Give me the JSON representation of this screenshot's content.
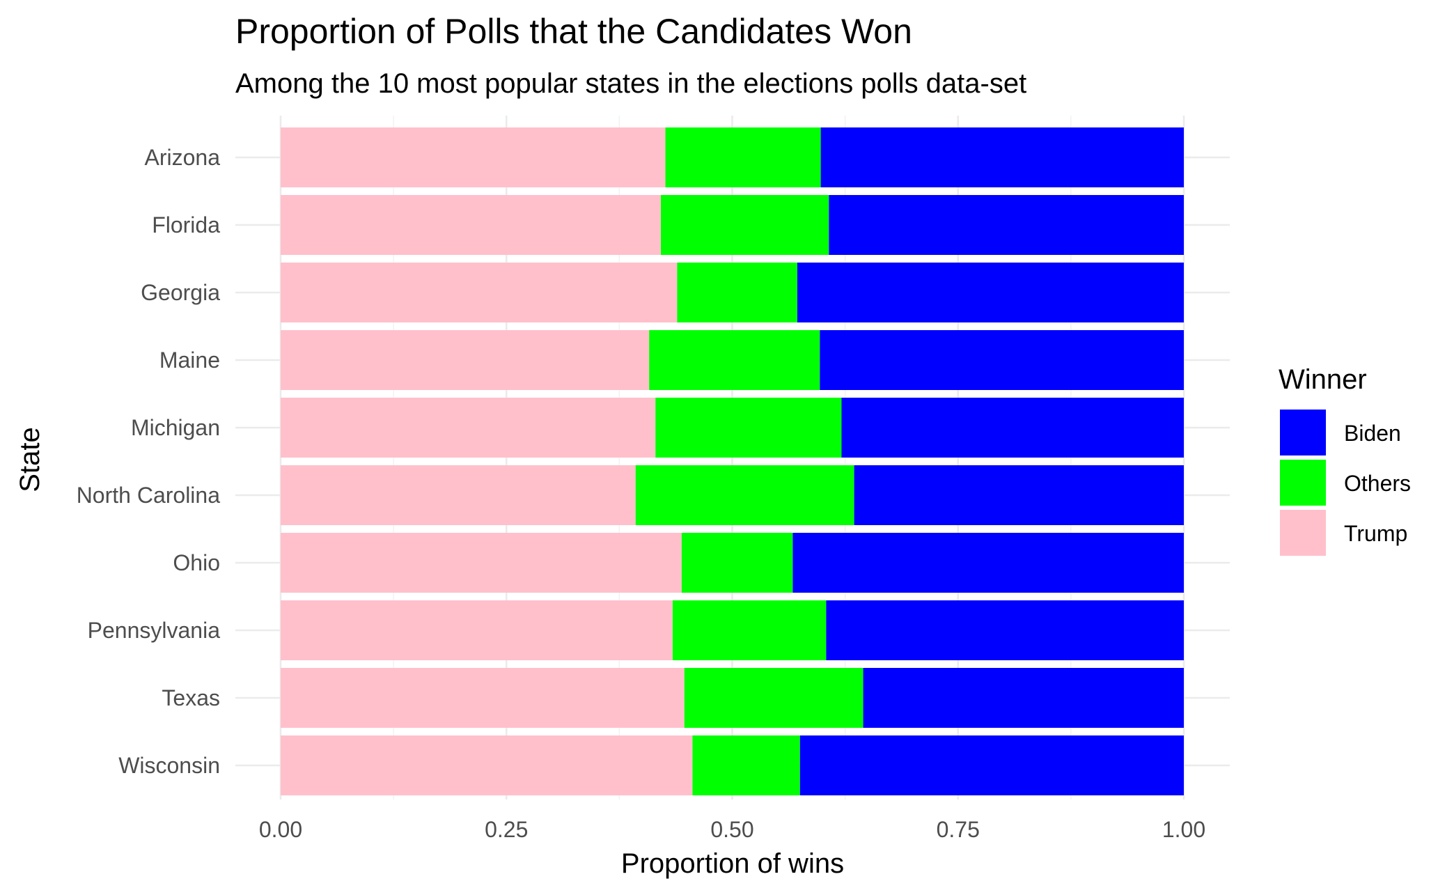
{
  "chart_data": {
    "type": "bar",
    "orientation": "horizontal",
    "stacked": true,
    "title": "Proportion of Polls that the Candidates Won",
    "subtitle": "Among the 10 most popular states in the elections polls data-set",
    "xlabel": "Proportion of wins",
    "ylabel": "State",
    "xlim": [
      0,
      1
    ],
    "x_ticks": [
      "0.00",
      "0.25",
      "0.50",
      "0.75",
      "1.00"
    ],
    "grid": true,
    "legend": {
      "title": "Winner",
      "placement": "right"
    },
    "categories": [
      "Wisconsin",
      "Texas",
      "Pennsylvania",
      "Ohio",
      "North Carolina",
      "Michigan",
      "Maine",
      "Georgia",
      "Florida",
      "Arizona"
    ],
    "series": [
      {
        "name": "Trump",
        "color": "#FFC0CB",
        "values": [
          0.456,
          0.447,
          0.434,
          0.444,
          0.393,
          0.415,
          0.408,
          0.439,
          0.421,
          0.426
        ]
      },
      {
        "name": "Others",
        "color": "#00FF00",
        "values": [
          0.119,
          0.198,
          0.17,
          0.123,
          0.242,
          0.206,
          0.189,
          0.133,
          0.186,
          0.172
        ]
      },
      {
        "name": "Biden",
        "color": "#0000FF",
        "values": [
          0.425,
          0.355,
          0.396,
          0.433,
          0.365,
          0.379,
          0.403,
          0.428,
          0.393,
          0.402
        ]
      }
    ],
    "legend_order": [
      "Biden",
      "Others",
      "Trump"
    ]
  }
}
